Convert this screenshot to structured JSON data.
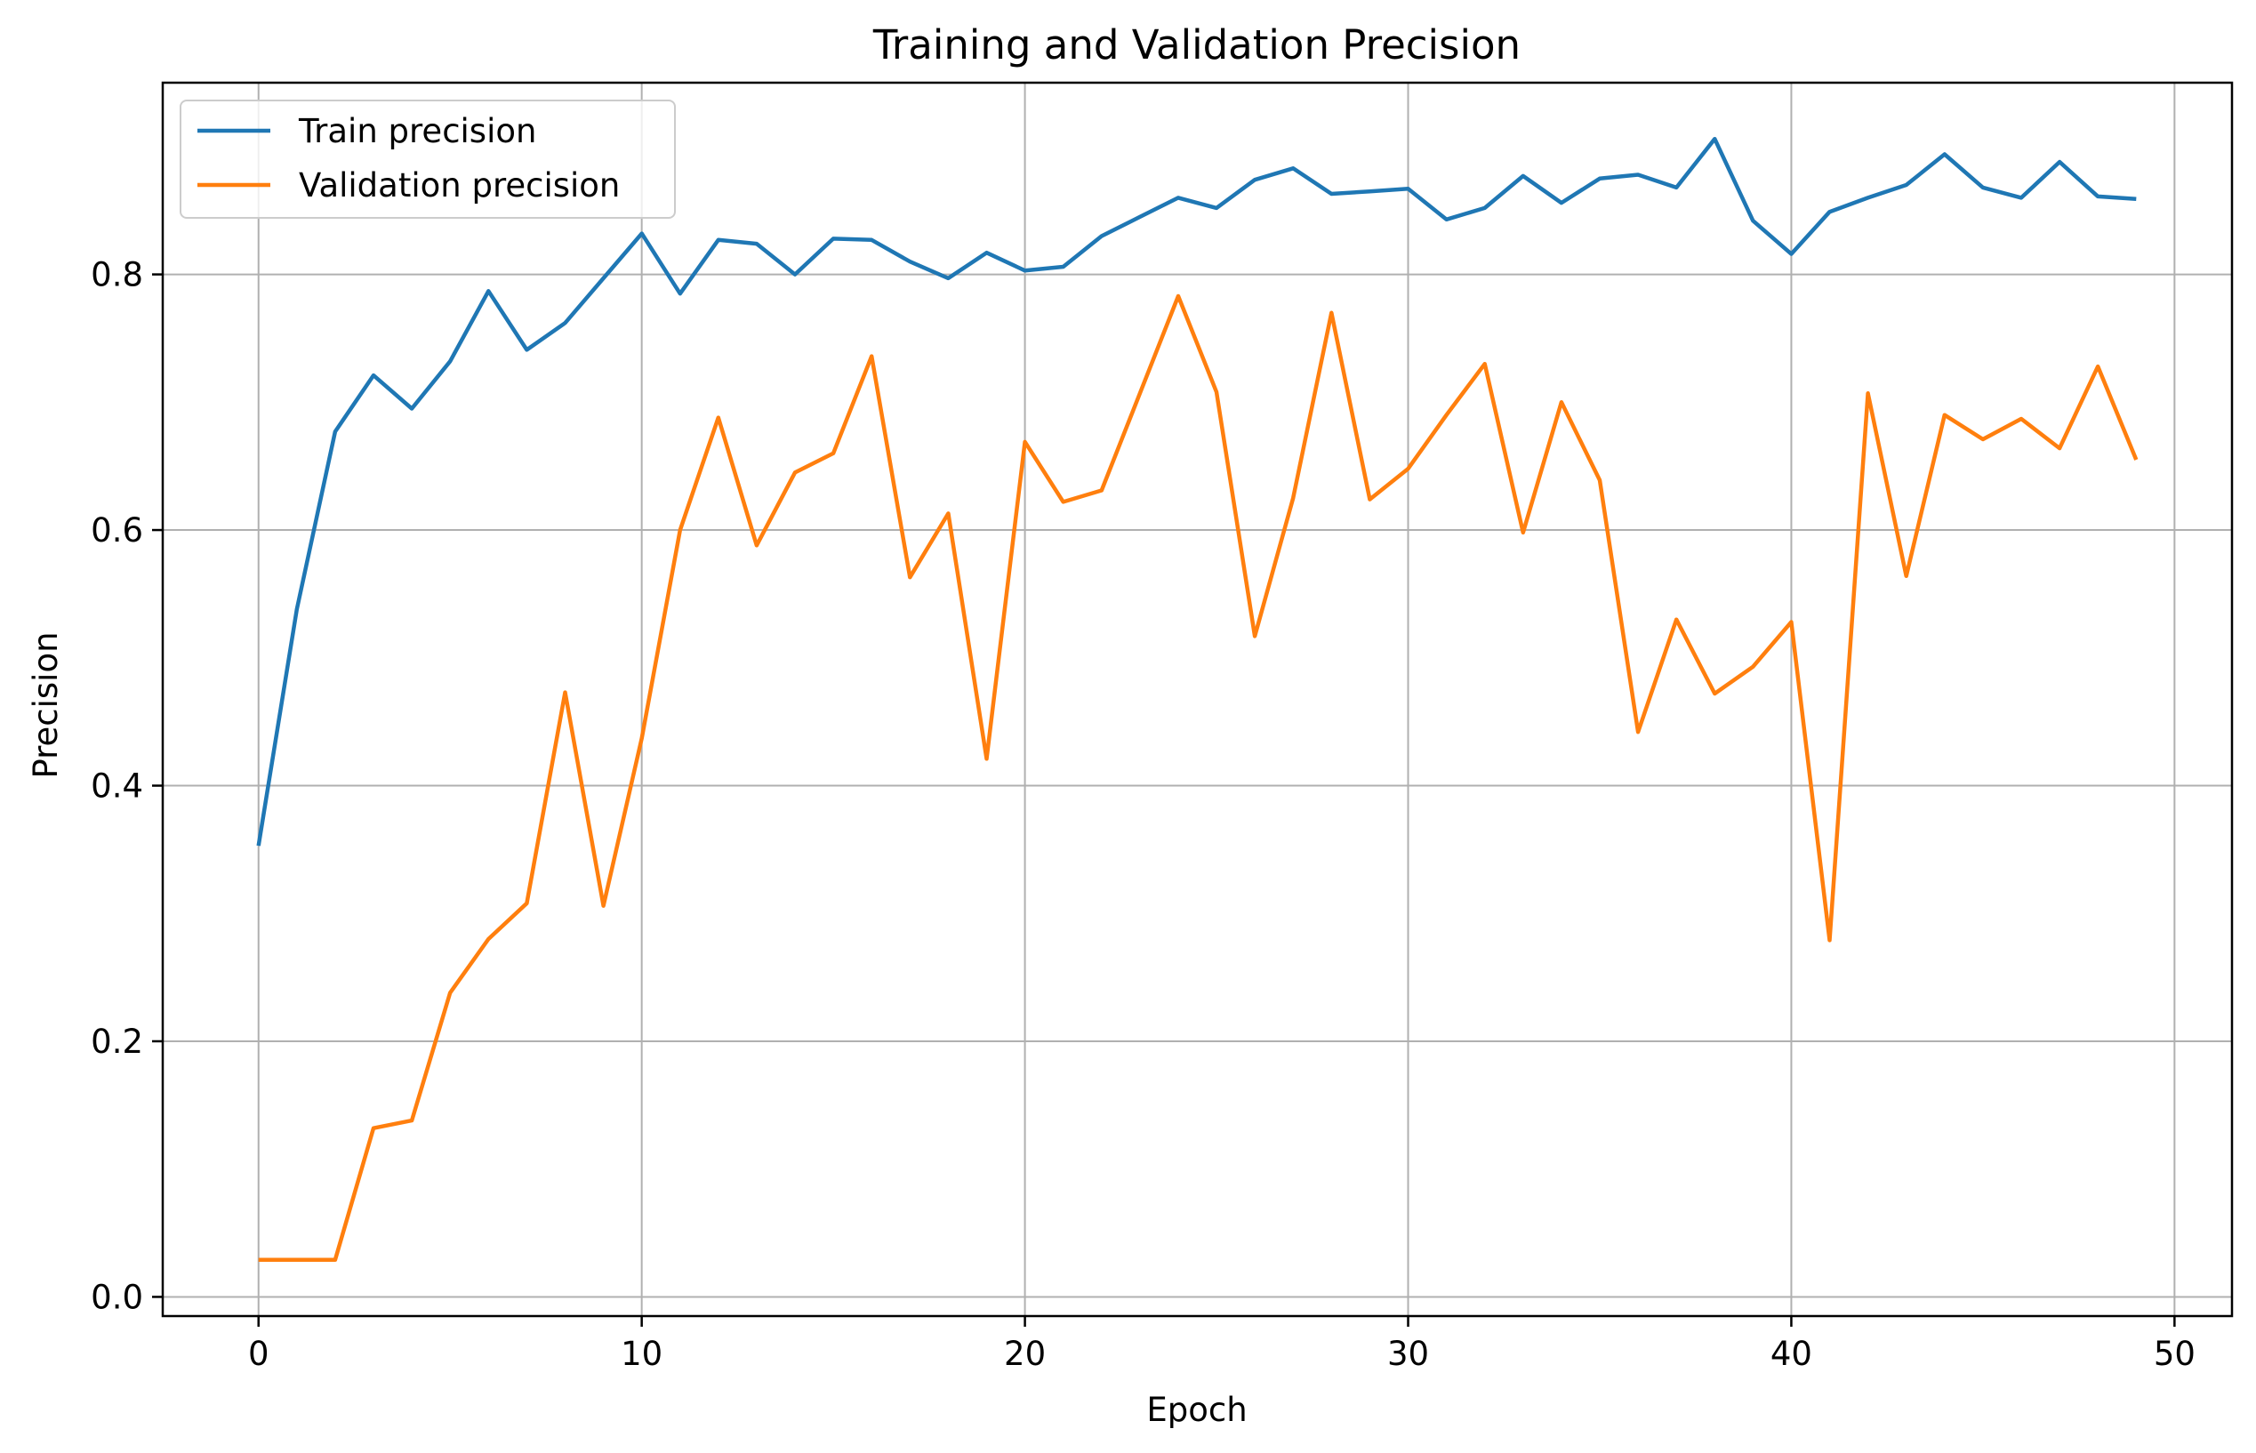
{
  "chart_data": {
    "type": "line",
    "title": "Training and Validation Precision",
    "xlabel": "Epoch",
    "ylabel": "Precision",
    "xlim": [
      -2.5,
      51.5
    ],
    "ylim": [
      -0.015,
      0.95
    ],
    "grid": true,
    "legend_position": "upper-left",
    "x_ticks": [
      0,
      10,
      20,
      30,
      40,
      50
    ],
    "x_tick_labels": [
      "0",
      "10",
      "20",
      "30",
      "40",
      "50"
    ],
    "y_ticks": [
      0.0,
      0.2,
      0.4,
      0.6,
      0.8
    ],
    "y_tick_labels": [
      "0.0",
      "0.2",
      "0.4",
      "0.6",
      "0.8"
    ],
    "x": [
      0,
      1,
      2,
      3,
      4,
      5,
      6,
      7,
      8,
      9,
      10,
      11,
      12,
      13,
      14,
      15,
      16,
      17,
      18,
      19,
      20,
      21,
      22,
      23,
      24,
      25,
      26,
      27,
      28,
      29,
      30,
      31,
      32,
      33,
      34,
      35,
      36,
      37,
      38,
      39,
      40,
      41,
      42,
      43,
      44,
      45,
      46,
      47,
      48,
      49
    ],
    "series": [
      {
        "name": "Train precision",
        "color": "#1f77b4",
        "values": [
          0.353,
          0.538,
          0.677,
          0.721,
          0.695,
          0.732,
          0.787,
          0.741,
          0.762,
          0.797,
          0.832,
          0.785,
          0.827,
          0.824,
          0.8,
          0.828,
          0.827,
          0.81,
          0.797,
          0.817,
          0.803,
          0.806,
          0.83,
          0.845,
          0.86,
          0.852,
          0.874,
          0.883,
          0.863,
          0.865,
          0.867,
          0.843,
          0.852,
          0.877,
          0.856,
          0.875,
          0.878,
          0.868,
          0.906,
          0.842,
          0.816,
          0.849,
          0.86,
          0.87,
          0.894,
          0.868,
          0.86,
          0.888,
          0.861,
          0.859
        ]
      },
      {
        "name": "Validation precision",
        "color": "#ff7f0e",
        "values": [
          0.029,
          0.029,
          0.029,
          0.132,
          0.138,
          0.238,
          0.28,
          0.308,
          0.473,
          0.306,
          0.437,
          0.6,
          0.688,
          0.588,
          0.645,
          0.66,
          0.736,
          0.563,
          0.613,
          0.421,
          0.669,
          0.622,
          0.631,
          0.707,
          0.783,
          0.708,
          0.517,
          0.625,
          0.77,
          0.624,
          0.648,
          0.69,
          0.73,
          0.598,
          0.7,
          0.639,
          0.442,
          0.53,
          0.472,
          0.493,
          0.528,
          0.279,
          0.707,
          0.564,
          0.69,
          0.671,
          0.687,
          0.664,
          0.728,
          0.655
        ]
      }
    ]
  }
}
